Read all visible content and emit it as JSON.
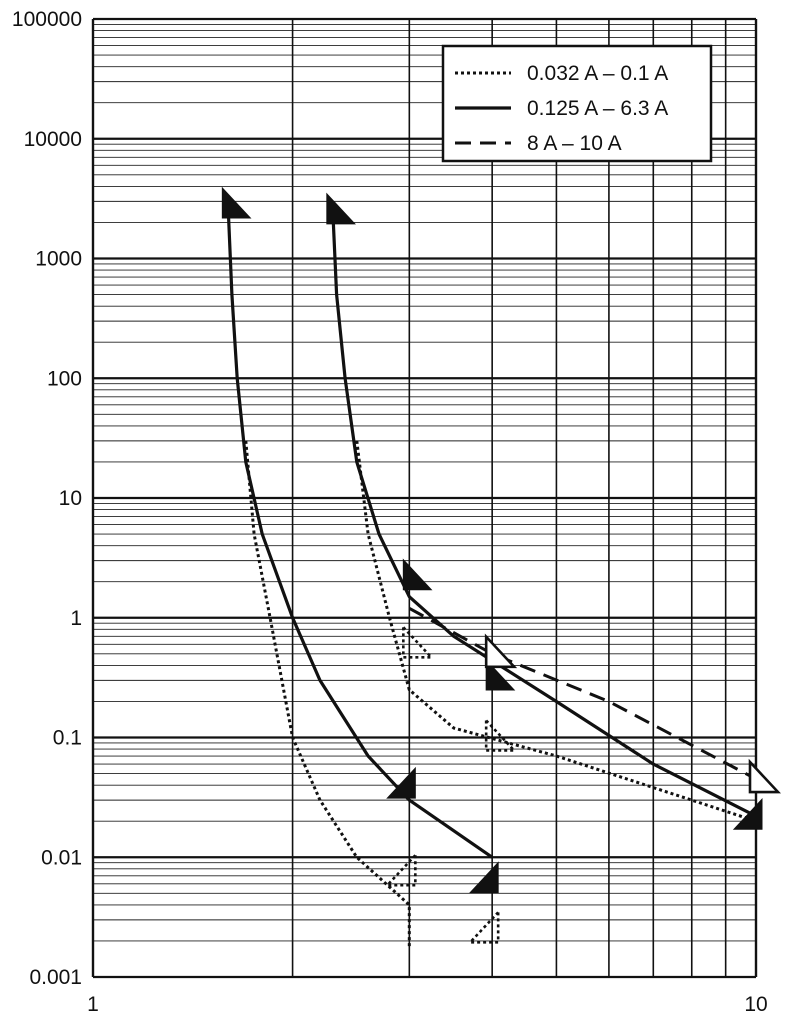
{
  "chart_data": {
    "type": "line",
    "title": "",
    "xlabel": "",
    "ylabel": "",
    "x_scale": "log",
    "y_scale": "log",
    "xlim": [
      1,
      10
    ],
    "ylim": [
      0.001,
      100000
    ],
    "grid": true,
    "legend_position": "top-right",
    "x_tick_labels": [
      {
        "value": 1,
        "label": "1"
      },
      {
        "value": 10,
        "label": "10"
      }
    ],
    "y_tick_labels": [
      {
        "value": 100000,
        "label": "100000"
      },
      {
        "value": 10000,
        "label": "10000"
      },
      {
        "value": 1000,
        "label": "1000"
      },
      {
        "value": 100,
        "label": "100"
      },
      {
        "value": 10,
        "label": "10"
      },
      {
        "value": 1,
        "label": "1"
      },
      {
        "value": 0.1,
        "label": "0.1"
      },
      {
        "value": 0.01,
        "label": "0.01"
      },
      {
        "value": 0.001,
        "label": "0.001"
      }
    ],
    "series": [
      {
        "name": "0.032 A – 0.1 A",
        "style": "dotted",
        "color": "#111111",
        "lines": [
          {
            "role": "lower",
            "points": [
              [
                1.7,
                30
              ],
              [
                1.75,
                5
              ],
              [
                1.85,
                1
              ],
              [
                2.0,
                0.1
              ],
              [
                2.2,
                0.03
              ],
              [
                2.5,
                0.01
              ],
              [
                3.0,
                0.004
              ],
              [
                3.0,
                0.0025
              ],
              [
                3.0,
                0.0018
              ]
            ]
          },
          {
            "role": "upper",
            "points": [
              [
                2.5,
                30
              ],
              [
                2.6,
                5
              ],
              [
                2.8,
                1
              ],
              [
                3.0,
                0.25
              ],
              [
                3.5,
                0.12
              ],
              [
                5.0,
                0.07
              ],
              [
                8.0,
                0.03
              ],
              [
                10.0,
                0.02
              ]
            ]
          }
        ]
      },
      {
        "name": "0.125 A – 6.3 A",
        "style": "solid",
        "color": "#111111",
        "lines": [
          {
            "role": "lower",
            "points": [
              [
                1.6,
                2500
              ],
              [
                1.62,
                500
              ],
              [
                1.65,
                100
              ],
              [
                1.7,
                20
              ],
              [
                1.8,
                5
              ],
              [
                2.0,
                1
              ],
              [
                2.2,
                0.3
              ],
              [
                2.6,
                0.07
              ],
              [
                3.0,
                0.03
              ],
              [
                4.0,
                0.01
              ]
            ]
          },
          {
            "role": "upper",
            "points": [
              [
                2.3,
                2500
              ],
              [
                2.33,
                500
              ],
              [
                2.4,
                100
              ],
              [
                2.5,
                20
              ],
              [
                2.7,
                5
              ],
              [
                3.0,
                1.5
              ],
              [
                3.5,
                0.7
              ],
              [
                5.0,
                0.2
              ],
              [
                7.0,
                0.06
              ],
              [
                10.0,
                0.022
              ]
            ]
          }
        ]
      },
      {
        "name": "8 A – 10 A",
        "style": "dashed",
        "color": "#111111",
        "lines": [
          {
            "role": "upper",
            "points": [
              [
                3.0,
                1.2
              ],
              [
                4.0,
                0.5
              ],
              [
                6.0,
                0.2
              ],
              [
                10.0,
                0.045
              ]
            ]
          }
        ]
      }
    ],
    "markers": [
      {
        "series": "0.125 A – 6.3 A",
        "shape": "triangle-filled",
        "x": 1.6,
        "y": 2800,
        "pointing": "right"
      },
      {
        "series": "0.125 A – 6.3 A",
        "shape": "triangle-filled",
        "x": 2.3,
        "y": 2500,
        "pointing": "right"
      },
      {
        "series": "0.125 A – 6.3 A",
        "shape": "triangle-filled",
        "x": 3.0,
        "y": 2.2,
        "pointing": "right"
      },
      {
        "series": "0.125 A – 6.3 A",
        "shape": "triangle-filled",
        "x": 3.0,
        "y": 0.04,
        "pointing": "left"
      },
      {
        "series": "0.125 A – 6.3 A",
        "shape": "triangle-filled",
        "x": 4.0,
        "y": 0.32,
        "pointing": "right"
      },
      {
        "series": "0.125 A – 6.3 A",
        "shape": "triangle-filled",
        "x": 4.0,
        "y": 0.0065,
        "pointing": "left"
      },
      {
        "series": "0.125 A – 6.3 A",
        "shape": "triangle-filled",
        "x": 10.0,
        "y": 0.022,
        "pointing": "left"
      },
      {
        "series": "0.032 A – 0.1 A",
        "shape": "triangle-dotted",
        "x": 3.0,
        "y": 0.6,
        "pointing": "right"
      },
      {
        "series": "0.032 A – 0.1 A",
        "shape": "triangle-dotted",
        "x": 3.0,
        "y": 0.0075,
        "pointing": "left"
      },
      {
        "series": "0.032 A – 0.1 A",
        "shape": "triangle-dotted",
        "x": 4.0,
        "y": 0.1,
        "pointing": "right"
      },
      {
        "series": "0.032 A – 0.1 A",
        "shape": "triangle-dotted",
        "x": 4.0,
        "y": 0.0025,
        "pointing": "left"
      },
      {
        "series": "8 A – 10 A",
        "shape": "triangle-open",
        "x": 4.0,
        "y": 0.5,
        "pointing": "right"
      },
      {
        "series": "8 A – 10 A",
        "shape": "triangle-open",
        "x": 10.0,
        "y": 0.045,
        "pointing": "right"
      }
    ]
  }
}
